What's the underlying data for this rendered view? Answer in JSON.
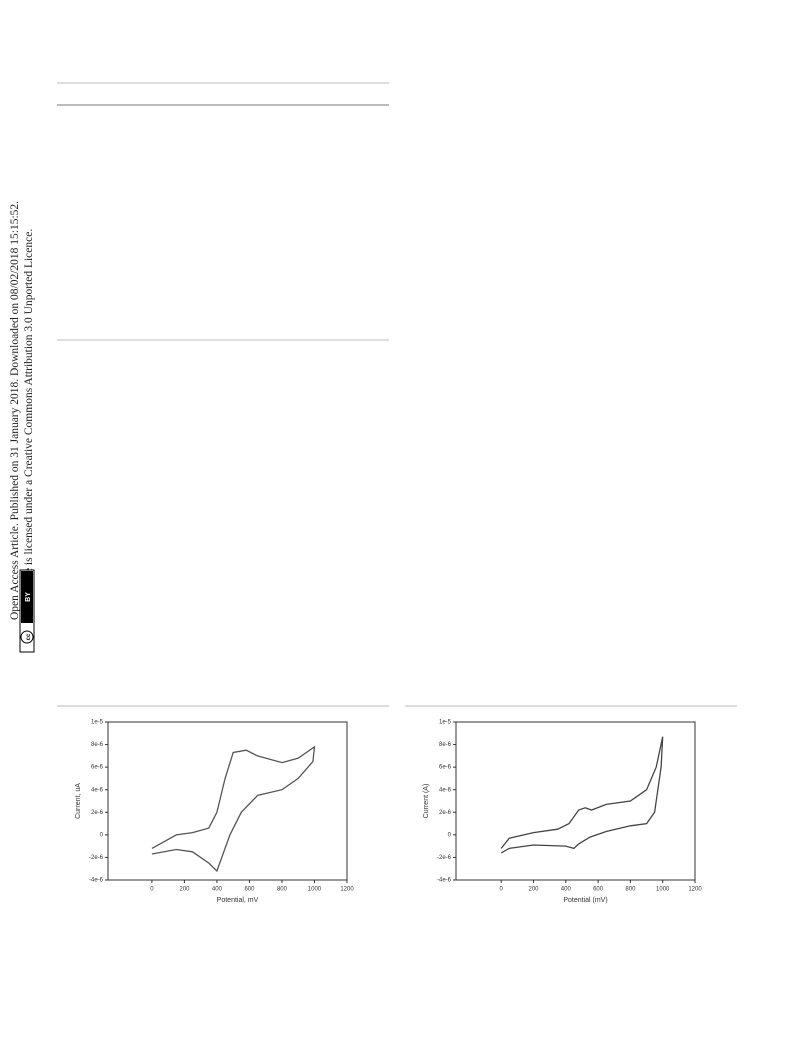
{
  "sidebar": {
    "line1": "Open Access Article. Published on 31 January 2018. Downloaded on 08/02/2018 15:15:52.",
    "line2": "This article is licensed under a Creative Commons Attribution 3.0 Unported Licence.",
    "badge_cc": "cc",
    "badge_by": "BY"
  },
  "chart_data": [
    {
      "type": "line",
      "x_label": "Potential, mV",
      "y_label": "Current, uA",
      "x": [
        0,
        150,
        250,
        350,
        400,
        450,
        500,
        580,
        650,
        800,
        900,
        1000,
        990,
        900,
        800,
        650,
        550,
        480,
        430,
        400,
        350,
        250,
        150,
        0
      ],
      "series": [
        {
          "color": "#555555",
          "values": [
            -1.2e-06,
            0,
            2e-07,
            6e-07,
            2e-06,
            5e-06,
            7.3e-06,
            7.5e-06,
            7e-06,
            6.4e-06,
            6.8e-06,
            7.8e-06,
            6.5e-06,
            5e-06,
            4e-06,
            3.5e-06,
            2e-06,
            0,
            -2e-06,
            -3.2e-06,
            -2.5e-06,
            -1.5e-06,
            -1.3e-06,
            -1.7e-06
          ]
        }
      ],
      "xlim": [
        -270,
        1200
      ],
      "ylim": [
        -4e-06,
        1e-05
      ],
      "xticks": [
        0,
        200,
        400,
        600,
        800,
        1000,
        1200
      ],
      "yticks": [
        {
          "value": -4e-06,
          "label": "-4e-6"
        },
        {
          "value": -2e-06,
          "label": "-2e-6"
        },
        0,
        {
          "value": 2e-06,
          "label": "2e-6"
        },
        {
          "value": 4e-06,
          "label": "4e-6"
        },
        {
          "value": 6e-06,
          "label": "6e-6"
        },
        {
          "value": 8e-06,
          "label": "8e-6"
        },
        {
          "value": 1e-05,
          "label": "1e-5"
        }
      ]
    },
    {
      "type": "line",
      "x_label": "Potential (mV)",
      "y_label": "Current (A)",
      "x": [
        0,
        50,
        200,
        350,
        420,
        480,
        520,
        560,
        650,
        800,
        900,
        960,
        1000,
        990,
        950,
        900,
        800,
        650,
        550,
        480,
        450,
        400,
        200,
        50,
        0
      ],
      "series": [
        {
          "color": "#444444",
          "values": [
            -1.2e-06,
            -3e-07,
            2e-07,
            5e-07,
            1e-06,
            2.2e-06,
            2.4e-06,
            2.2e-06,
            2.7e-06,
            3e-06,
            4e-06,
            6e-06,
            8.7e-06,
            6e-06,
            2e-06,
            1e-06,
            8e-07,
            3e-07,
            -2e-07,
            -8e-07,
            -1.2e-06,
            -1e-06,
            -9e-07,
            -1.2e-06,
            -1.6e-06
          ]
        }
      ],
      "xlim": [
        -280,
        1200
      ],
      "ylim": [
        -4e-06,
        1e-05
      ],
      "xticks": [
        0,
        200,
        400,
        600,
        800,
        1000,
        1200
      ],
      "yticks": [
        {
          "value": -4e-06,
          "label": "-4e-6"
        },
        {
          "value": -2e-06,
          "label": "-2e-6"
        },
        0,
        {
          "value": 2e-06,
          "label": "2e-6"
        },
        {
          "value": 4e-06,
          "label": "4e-6"
        },
        {
          "value": 6e-06,
          "label": "6e-6"
        },
        {
          "value": 8e-06,
          "label": "8e-6"
        },
        {
          "value": 1e-05,
          "label": "1e-5"
        }
      ]
    }
  ]
}
